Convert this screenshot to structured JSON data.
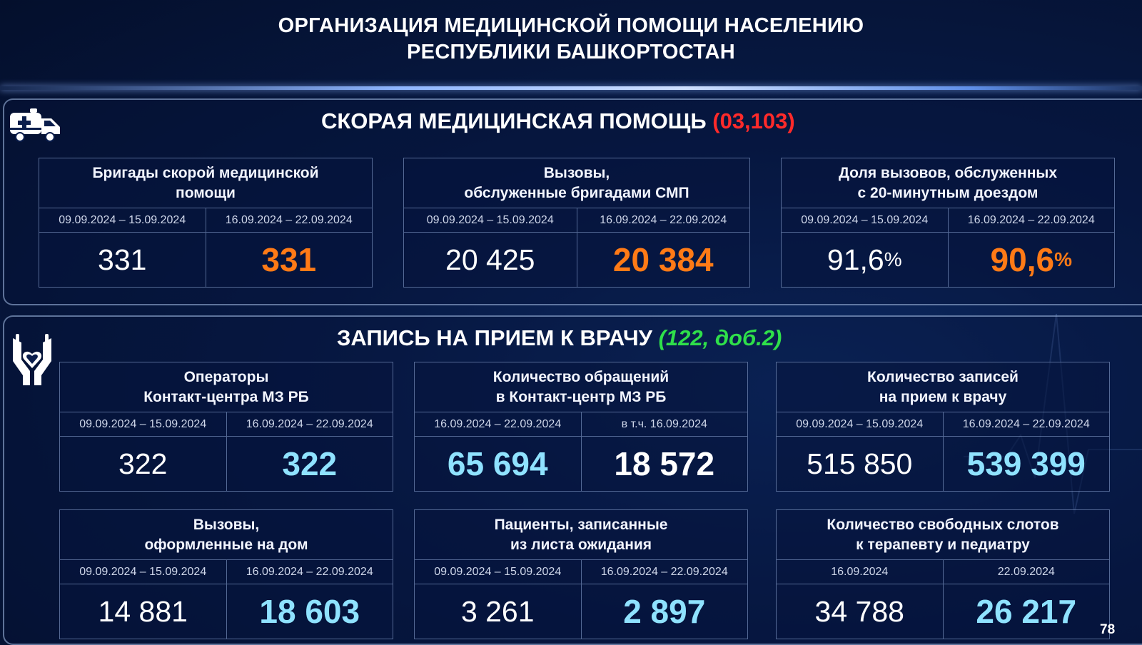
{
  "header": {
    "title_line1": "ОРГАНИЗАЦИЯ МЕДИЦИНСКОЙ ПОМОЩИ НАСЕЛЕНИЮ",
    "title_line2": "РЕСПУБЛИКИ БАШКОРТОСТАН"
  },
  "ambulance_section": {
    "title": "СКОРАЯ МЕДИЦИНСКАЯ ПОМОЩЬ",
    "phone": "(03,103)",
    "icon": "ambulance-icon",
    "cards": [
      {
        "head1": "Бригады скорой медицинской",
        "head2": "помощи",
        "period1": "09.09.2024 – 15.09.2024",
        "period2": "16.09.2024 – 22.09.2024",
        "value1": "331",
        "value2": "331"
      },
      {
        "head1": "Вызовы,",
        "head2": "обслуженные бригадами СМП",
        "period1": "09.09.2024 – 15.09.2024",
        "period2": "16.09.2024 – 22.09.2024",
        "value1": "20 425",
        "value2": "20 384"
      },
      {
        "head1": "Доля вызовов, обслуженных",
        "head2": "с 20-минутным доездом",
        "period1": "09.09.2024 – 15.09.2024",
        "period2": "16.09.2024 – 22.09.2024",
        "value1": "91,6",
        "value2": "90,6",
        "unit": "%"
      }
    ]
  },
  "appointment_section": {
    "title": "ЗАПИСЬ НА ПРИЕМ К ВРАЧУ",
    "phone": "(122, доб.2)",
    "icon": "hands-heart-icon",
    "cards": [
      {
        "head1": "Операторы",
        "head2": "Контакт-центра МЗ РБ",
        "period1": "09.09.2024 – 15.09.2024",
        "period2": "16.09.2024 – 22.09.2024",
        "value1": "322",
        "value2": "322"
      },
      {
        "head1": "Количество обращений",
        "head2": "в Контакт-центр МЗ РБ",
        "period1": "16.09.2024 – 22.09.2024",
        "period2": "в т.ч. 16.09.2024",
        "value1": "65 694",
        "value2": "18 572"
      },
      {
        "head1": "Количество записей",
        "head2": "на прием к врачу",
        "period1": "09.09.2024 – 15.09.2024",
        "period2": "16.09.2024 – 22.09.2024",
        "value1": "515 850",
        "value2": "539 399"
      },
      {
        "head1": "Вызовы,",
        "head2": "оформленные на дом",
        "period1": "09.09.2024 – 15.09.2024",
        "period2": "16.09.2024 – 22.09.2024",
        "value1": "14 881",
        "value2": "18 603"
      },
      {
        "head1": "Пациенты, записанные",
        "head2": "из листа ожидания",
        "period1": "09.09.2024 – 15.09.2024",
        "period2": "16.09.2024 – 22.09.2024",
        "value1": "3 261",
        "value2": "2 897"
      },
      {
        "head1": "Количество свободных слотов",
        "head2": "к терапевту и педиатру",
        "period1": "16.09.2024",
        "period2": "22.09.2024",
        "value1": "34 788",
        "value2": "26 217"
      }
    ]
  },
  "colors": {
    "highlight_orange": "#ff7a16",
    "highlight_cyan": "#8fe2ff",
    "phone_red": "#ff2a2a",
    "phone_green": "#2fe04a"
  },
  "page_number": "78"
}
